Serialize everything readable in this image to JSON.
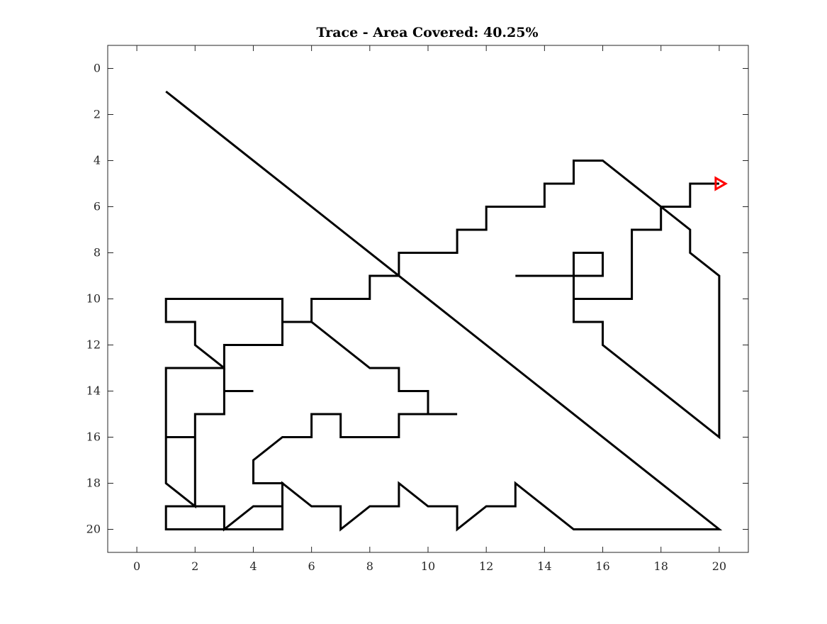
{
  "chart_data": {
    "type": "line",
    "title": "Trace - Area Covered: 40.25%",
    "xlabel": "",
    "ylabel": "",
    "xlim": [
      -1,
      21
    ],
    "ylim": [
      -1,
      21
    ],
    "y_reversed": true,
    "grid": false,
    "x_ticks": [
      "0",
      "2",
      "4",
      "6",
      "8",
      "10",
      "12",
      "14",
      "16",
      "18",
      "20"
    ],
    "y_ticks": [
      "0",
      "2",
      "4",
      "6",
      "8",
      "10",
      "12",
      "14",
      "16",
      "18",
      "20"
    ],
    "series": [
      {
        "color": "#000000",
        "points": [
          [
            1,
            1
          ],
          [
            20,
            20
          ],
          [
            15,
            20
          ],
          [
            13,
            18
          ],
          [
            13,
            19
          ],
          [
            12,
            19
          ],
          [
            11,
            20
          ],
          [
            11,
            19
          ],
          [
            10,
            19
          ],
          [
            9,
            18
          ],
          [
            9,
            19
          ],
          [
            8,
            19
          ],
          [
            7,
            20
          ],
          [
            7,
            19
          ],
          [
            6,
            19
          ],
          [
            5,
            18
          ],
          [
            5,
            20
          ],
          [
            3,
            20
          ],
          [
            1,
            20
          ],
          [
            1,
            19
          ],
          [
            3,
            19
          ],
          [
            3,
            20
          ],
          [
            4,
            19
          ],
          [
            5,
            19
          ],
          [
            5,
            18
          ],
          [
            4,
            18
          ],
          [
            4,
            17
          ],
          [
            5,
            16
          ],
          [
            6,
            16
          ],
          [
            6,
            15
          ],
          [
            7,
            15
          ],
          [
            7,
            16
          ],
          [
            9,
            16
          ],
          [
            9,
            15
          ],
          [
            11,
            15
          ],
          [
            10,
            15
          ],
          [
            10,
            14
          ],
          [
            9,
            14
          ],
          [
            9,
            13
          ],
          [
            8,
            13
          ],
          [
            6,
            11
          ],
          [
            5,
            11
          ],
          [
            6,
            11
          ],
          [
            6,
            10
          ],
          [
            8,
            10
          ],
          [
            8,
            9
          ],
          [
            9,
            9
          ],
          [
            9,
            8
          ],
          [
            11,
            8
          ],
          [
            11,
            7
          ],
          [
            12,
            7
          ],
          [
            12,
            6
          ],
          [
            14,
            6
          ],
          [
            14,
            5
          ],
          [
            15,
            5
          ],
          [
            15,
            4
          ],
          [
            16,
            4
          ],
          [
            18,
            6
          ],
          [
            19,
            7
          ],
          [
            19,
            8
          ],
          [
            20,
            9
          ],
          [
            20,
            16
          ],
          [
            16,
            12
          ],
          [
            16,
            11
          ],
          [
            15,
            11
          ],
          [
            15,
            8
          ],
          [
            16,
            8
          ],
          [
            16,
            9
          ],
          [
            13,
            9
          ]
        ]
      },
      {
        "color": "#000000",
        "points": [
          [
            5,
            11
          ],
          [
            5,
            10
          ],
          [
            1,
            10
          ],
          [
            1,
            11
          ],
          [
            2,
            11
          ],
          [
            2,
            12
          ],
          [
            3,
            13
          ],
          [
            3,
            12
          ],
          [
            5,
            12
          ],
          [
            5,
            11
          ]
        ]
      },
      {
        "color": "#000000",
        "points": [
          [
            3,
            13
          ],
          [
            1,
            13
          ],
          [
            1,
            18
          ],
          [
            2,
            19
          ],
          [
            2,
            15
          ],
          [
            3,
            15
          ],
          [
            3,
            13
          ]
        ]
      },
      {
        "color": "#000000",
        "points": [
          [
            3,
            14
          ],
          [
            4,
            14
          ]
        ]
      },
      {
        "color": "#000000",
        "points": [
          [
            1,
            16
          ],
          [
            2,
            16
          ]
        ]
      },
      {
        "color": "#000000",
        "points": [
          [
            15,
            10
          ],
          [
            17,
            10
          ],
          [
            17,
            7
          ],
          [
            18,
            7
          ],
          [
            18,
            6
          ],
          [
            19,
            6
          ],
          [
            19,
            5
          ],
          [
            20,
            5
          ]
        ]
      }
    ],
    "marker": {
      "shape": "triangle-right",
      "color": "#ff0000",
      "x": 20,
      "y": 5
    }
  }
}
